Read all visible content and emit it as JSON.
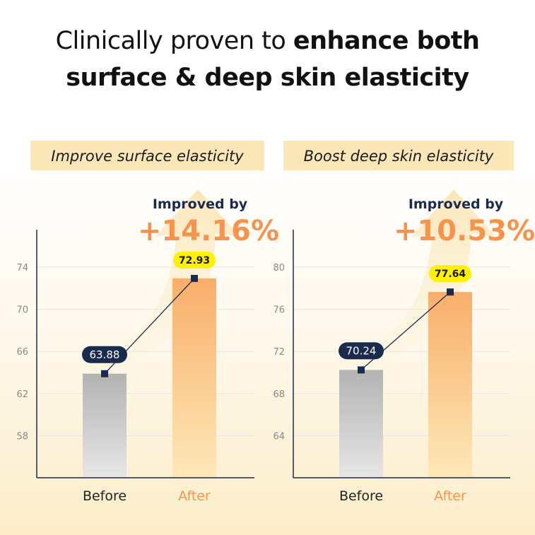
{
  "title": {
    "line1_regular": "Clinically proven to ",
    "line1_bold": "enhance both",
    "line2_bold": "surface & deep skin elasticity"
  },
  "colors": {
    "navy": "#1b2b4d",
    "orange": "#f7934c",
    "highlight": "#fff200",
    "banner": "#fbe6b8"
  },
  "chart_data": [
    {
      "type": "bar",
      "title": "Improve surface elasticity",
      "improved_label": "Improved by",
      "improvement": "+14.16%",
      "categories": [
        "Before",
        "After"
      ],
      "values": [
        63.88,
        72.93
      ],
      "value_labels": [
        "63.88",
        "72.93"
      ],
      "yticks": [
        74,
        70,
        66,
        62,
        58
      ],
      "ylim": [
        54,
        78
      ],
      "grid": true
    },
    {
      "type": "bar",
      "title": "Boost deep skin elasticity",
      "improved_label": "Improved by",
      "improvement": "+10.53%",
      "categories": [
        "Before",
        "After"
      ],
      "values": [
        70.24,
        77.64
      ],
      "value_labels": [
        "70.24",
        "77.64"
      ],
      "yticks": [
        80,
        76,
        72,
        68,
        64
      ],
      "ylim": [
        60,
        84
      ],
      "grid": true
    }
  ]
}
